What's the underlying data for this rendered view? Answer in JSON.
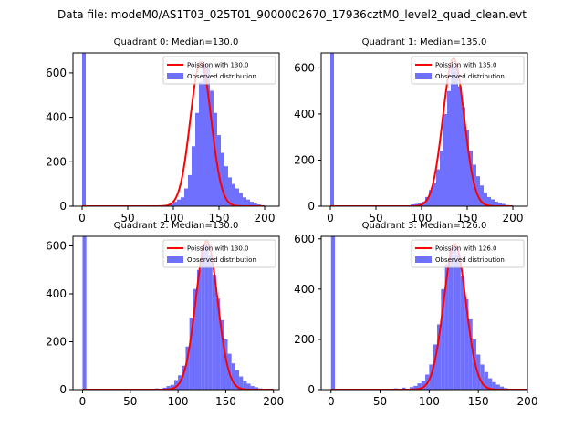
{
  "suptitle": "Data file: modeM0/AS1T03_025T01_9000002670_17936cztM0_level2_quad_clean.evt",
  "colors": {
    "bars": "#7070ff",
    "curve": "#ff0000",
    "axes": "#000000",
    "legend_border": "#cccccc"
  },
  "legend": {
    "observed_label": "Observed distribution"
  },
  "chart_data": [
    {
      "type": "bar",
      "title": "Quadrant 0: Median=130.0",
      "poisson_label": "Poission with 130.0",
      "median": 130,
      "peak": 650,
      "bin_width": 4,
      "xlim": [
        -10,
        216
      ],
      "ylim": [
        0,
        690
      ],
      "xticks": [
        0,
        50,
        100,
        150,
        200
      ],
      "yticks": [
        0,
        200,
        400,
        600
      ],
      "bins": [
        [
          0,
          690
        ],
        [
          48,
          1
        ],
        [
          56,
          1
        ],
        [
          64,
          1
        ],
        [
          72,
          2
        ],
        [
          76,
          2
        ],
        [
          80,
          3
        ],
        [
          84,
          3
        ],
        [
          88,
          5
        ],
        [
          92,
          6
        ],
        [
          96,
          10
        ],
        [
          100,
          20
        ],
        [
          104,
          30
        ],
        [
          108,
          40
        ],
        [
          112,
          80
        ],
        [
          116,
          140
        ],
        [
          120,
          270
        ],
        [
          124,
          420
        ],
        [
          128,
          560
        ],
        [
          132,
          640
        ],
        [
          136,
          620
        ],
        [
          140,
          520
        ],
        [
          144,
          420
        ],
        [
          148,
          320
        ],
        [
          152,
          240
        ],
        [
          156,
          180
        ],
        [
          160,
          130
        ],
        [
          164,
          100
        ],
        [
          168,
          80
        ],
        [
          172,
          60
        ],
        [
          176,
          40
        ],
        [
          180,
          30
        ],
        [
          184,
          20
        ],
        [
          188,
          12
        ],
        [
          192,
          8
        ],
        [
          196,
          4
        ],
        [
          200,
          2
        ]
      ]
    },
    {
      "type": "bar",
      "title": "Quadrant 1: Median=135.0",
      "poisson_label": "Poission with 135.0",
      "median": 135,
      "peak": 640,
      "bin_width": 4,
      "xlim": [
        -10,
        216
      ],
      "ylim": [
        0,
        665
      ],
      "xticks": [
        0,
        50,
        100,
        150,
        200
      ],
      "yticks": [
        0,
        200,
        400,
        600
      ],
      "bins": [
        [
          0,
          665
        ],
        [
          72,
          2
        ],
        [
          80,
          3
        ],
        [
          84,
          4
        ],
        [
          88,
          8
        ],
        [
          92,
          10
        ],
        [
          96,
          12
        ],
        [
          100,
          20
        ],
        [
          104,
          40
        ],
        [
          108,
          70
        ],
        [
          112,
          100
        ],
        [
          116,
          160
        ],
        [
          120,
          240
        ],
        [
          124,
          400
        ],
        [
          128,
          500
        ],
        [
          132,
          620
        ],
        [
          136,
          600
        ],
        [
          140,
          520
        ],
        [
          144,
          430
        ],
        [
          148,
          330
        ],
        [
          152,
          240
        ],
        [
          156,
          180
        ],
        [
          160,
          130
        ],
        [
          164,
          90
        ],
        [
          168,
          60
        ],
        [
          172,
          40
        ],
        [
          176,
          30
        ],
        [
          180,
          20
        ],
        [
          184,
          15
        ],
        [
          188,
          10
        ],
        [
          192,
          5
        ],
        [
          196,
          3
        ]
      ]
    },
    {
      "type": "bar",
      "title": "Quadrant 2: Median=130.0",
      "poisson_label": "Poission with 130.0",
      "median": 130,
      "peak": 620,
      "bin_width": 4,
      "xlim": [
        -10,
        206
      ],
      "ylim": [
        0,
        640
      ],
      "xticks": [
        0,
        50,
        100,
        150,
        200
      ],
      "yticks": [
        0,
        200,
        400,
        600
      ],
      "bins": [
        [
          0,
          640
        ],
        [
          60,
          2
        ],
        [
          68,
          3
        ],
        [
          76,
          5
        ],
        [
          84,
          8
        ],
        [
          88,
          15
        ],
        [
          92,
          20
        ],
        [
          96,
          40
        ],
        [
          100,
          60
        ],
        [
          104,
          100
        ],
        [
          108,
          180
        ],
        [
          112,
          300
        ],
        [
          116,
          420
        ],
        [
          120,
          500
        ],
        [
          124,
          580
        ],
        [
          128,
          610
        ],
        [
          132,
          560
        ],
        [
          136,
          480
        ],
        [
          140,
          380
        ],
        [
          144,
          290
        ],
        [
          148,
          210
        ],
        [
          152,
          150
        ],
        [
          156,
          110
        ],
        [
          160,
          80
        ],
        [
          164,
          55
        ],
        [
          168,
          35
        ],
        [
          172,
          25
        ],
        [
          176,
          15
        ],
        [
          180,
          10
        ],
        [
          184,
          5
        ],
        [
          188,
          3
        ]
      ]
    },
    {
      "type": "bar",
      "title": "Quadrant 3: Median=126.0",
      "poisson_label": "Poission with 126.0",
      "median": 126,
      "peak": 580,
      "bin_width": 4,
      "xlim": [
        -10,
        200
      ],
      "ylim": [
        0,
        610
      ],
      "xticks": [
        0,
        50,
        100,
        150,
        200
      ],
      "yticks": [
        0,
        200,
        400,
        600
      ],
      "bins": [
        [
          0,
          610
        ],
        [
          56,
          2
        ],
        [
          64,
          5
        ],
        [
          72,
          8
        ],
        [
          80,
          10
        ],
        [
          84,
          15
        ],
        [
          88,
          25
        ],
        [
          92,
          35
        ],
        [
          96,
          60
        ],
        [
          100,
          100
        ],
        [
          104,
          180
        ],
        [
          108,
          260
        ],
        [
          112,
          400
        ],
        [
          116,
          500
        ],
        [
          120,
          560
        ],
        [
          124,
          580
        ],
        [
          128,
          540
        ],
        [
          132,
          450
        ],
        [
          136,
          360
        ],
        [
          140,
          280
        ],
        [
          144,
          200
        ],
        [
          148,
          140
        ],
        [
          152,
          100
        ],
        [
          156,
          70
        ],
        [
          160,
          45
        ],
        [
          164,
          30
        ],
        [
          168,
          20
        ],
        [
          172,
          12
        ],
        [
          176,
          6
        ]
      ]
    }
  ]
}
